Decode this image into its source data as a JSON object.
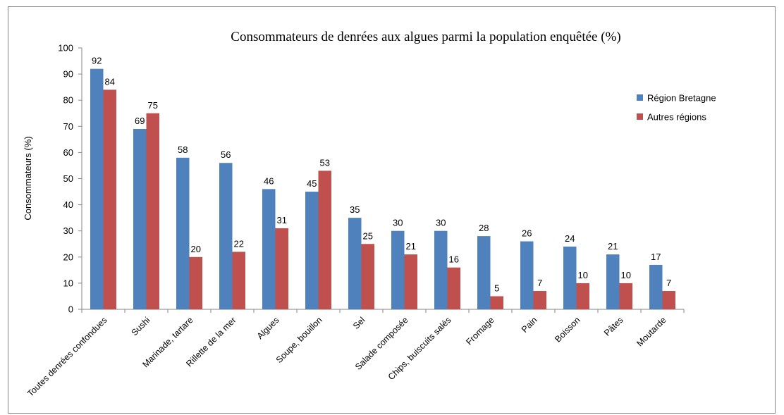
{
  "chart_data": {
    "type": "bar",
    "title": "Consommateurs  de  denrées  aux  algues  parmi  la  population  enquêtée  (%)",
    "ylabel": "Consommateurs (%)",
    "xlabel": "",
    "ylim": [
      0,
      100
    ],
    "yticks": [
      0,
      10,
      20,
      30,
      40,
      50,
      60,
      70,
      80,
      90,
      100
    ],
    "grid": false,
    "legend_position": "right",
    "categories": [
      "Toutes denrées confondues",
      "Sushi",
      "Marinade, tartare",
      "Rillette de la mer",
      "Algues",
      "Soupe, bouillon",
      "Sel",
      "Salade composée",
      "Chips, buiscuits salés",
      "Fromage",
      "Pain",
      "Boisson",
      "Pâtes",
      "Moutarde"
    ],
    "series": [
      {
        "name": "Région Bretagne",
        "color": "#4F81BD",
        "values": [
          92,
          69,
          58,
          56,
          46,
          45,
          35,
          30,
          30,
          28,
          26,
          24,
          21,
          17
        ]
      },
      {
        "name": "Autres régions",
        "color": "#C0504D",
        "values": [
          84,
          75,
          20,
          22,
          31,
          53,
          25,
          21,
          16,
          5,
          7,
          10,
          10,
          7
        ]
      }
    ]
  }
}
